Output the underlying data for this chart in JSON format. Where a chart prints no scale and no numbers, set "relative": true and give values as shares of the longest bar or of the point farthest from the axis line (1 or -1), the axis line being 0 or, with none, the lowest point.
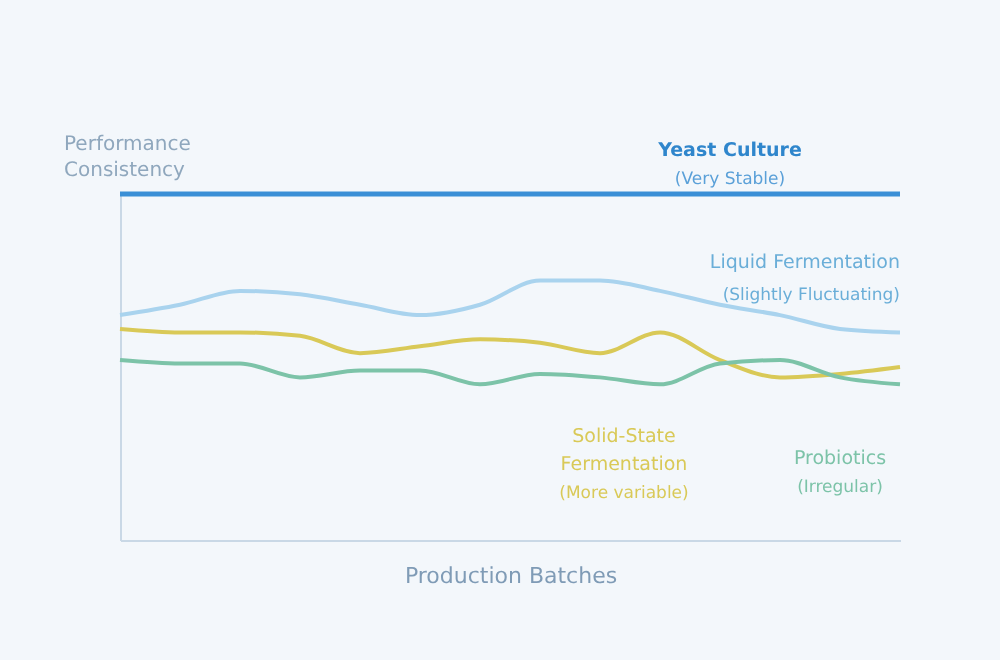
{
  "chart_data": {
    "type": "line",
    "relative": true,
    "xlabel": "Production Batches",
    "ylabel": "Performance Consistency",
    "categories": [
      null,
      null,
      null,
      null,
      null,
      null,
      null,
      null,
      null,
      null,
      null,
      null,
      null,
      null
    ],
    "series": [
      {
        "name": "Yeast Culture",
        "color": "#3a8fd6",
        "values": [
          1,
          1,
          1,
          1,
          1,
          1,
          1,
          1,
          1,
          1,
          1,
          1,
          1,
          1
        ]
      },
      {
        "name": "Liquid Fermentation",
        "color": "#a9d3ee",
        "values": [
          0.65,
          0.68,
          0.72,
          0.71,
          0.68,
          0.65,
          0.68,
          0.75,
          0.75,
          0.72,
          0.68,
          0.65,
          0.61,
          0.6
        ]
      },
      {
        "name": "Solid-State Fermentation",
        "color": "#d9c957",
        "values": [
          0.61,
          0.6,
          0.6,
          0.59,
          0.54,
          0.56,
          0.58,
          0.57,
          0.54,
          0.6,
          0.52,
          0.47,
          0.48,
          0.5
        ]
      },
      {
        "name": "Probiotics",
        "color": "#7cc3a8",
        "values": [
          0.52,
          0.51,
          0.51,
          0.47,
          0.49,
          0.49,
          0.45,
          0.48,
          0.47,
          0.45,
          0.51,
          0.52,
          0.47,
          0.45
        ]
      }
    ],
    "annotations": [
      "(Very Stable)",
      "(Slightly Fluctuating)",
      "(More variable)",
      "(Irregular)"
    ],
    "grid": false,
    "line_style": "solid",
    "marker": "none"
  }
}
